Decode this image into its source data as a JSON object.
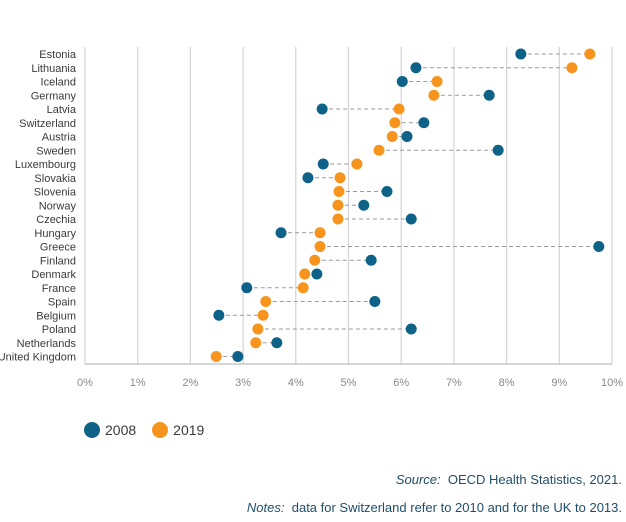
{
  "chart_data": {
    "type": "dumbbell",
    "title": "",
    "xlabel": "",
    "ylabel": "",
    "xlim": [
      0,
      10
    ],
    "x_ticks": [
      "0%",
      "1%",
      "2%",
      "3%",
      "4%",
      "5%",
      "6%",
      "7%",
      "8%",
      "9%",
      "10%"
    ],
    "grid": "vertical",
    "legend_position": "bottom-left",
    "categories": [
      "Estonia",
      "Lithuania",
      "Iceland",
      "Germany",
      "Latvia",
      "Switzerland",
      "Austria",
      "Sweden",
      "Luxembourg",
      "Slovakia",
      "Slovenia",
      "Norway",
      "Czechia",
      "Hungary",
      "Greece",
      "Finland",
      "Denmark",
      "France",
      "Spain",
      "Belgium",
      "Poland",
      "Netherlands",
      "United Kingdom"
    ],
    "series": [
      {
        "name": "2008",
        "color": "#0e6187",
        "values": [
          8.27,
          6.28,
          6.02,
          7.67,
          4.5,
          6.43,
          6.11,
          7.84,
          4.52,
          4.23,
          5.73,
          5.29,
          6.19,
          3.72,
          9.75,
          5.43,
          4.4,
          3.07,
          5.5,
          2.54,
          6.19,
          3.64,
          2.9
        ]
      },
      {
        "name": "2019",
        "color": "#f7941d",
        "values": [
          9.58,
          9.24,
          6.68,
          6.62,
          5.96,
          5.88,
          5.83,
          5.58,
          5.16,
          4.84,
          4.82,
          4.8,
          4.8,
          4.46,
          4.46,
          4.36,
          4.17,
          4.14,
          3.43,
          3.38,
          3.28,
          3.24,
          2.49
        ]
      }
    ]
  },
  "legend": [
    {
      "label": "2008",
      "color": "#0e6187"
    },
    {
      "label": "2019",
      "color": "#f7941d"
    }
  ],
  "footer": {
    "source_label": "Source:",
    "source_text": "OECD Health Statistics, 2021.",
    "notes_label": "Notes:",
    "notes_text": "data for Switzerland refer to 2010 and for the UK to 2013."
  }
}
